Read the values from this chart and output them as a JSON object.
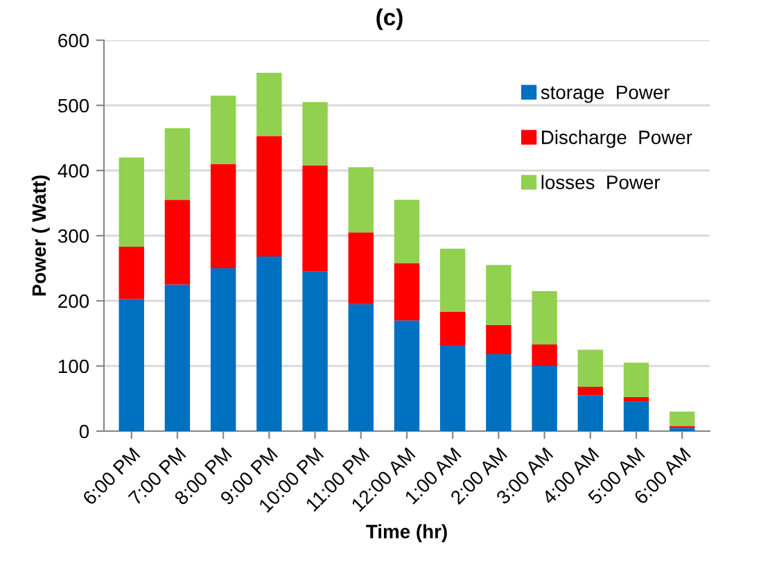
{
  "chart_data": {
    "type": "bar",
    "stacked": true,
    "title": "(c)",
    "xlabel": "Time (hr)",
    "ylabel": "Power ( Watt)",
    "categories": [
      "6:00 PM",
      "7:00 PM",
      "8:00 PM",
      "9:00 PM",
      "10:00 PM",
      "11:00 PM",
      "12:00 AM",
      "1:00 AM",
      "2:00 AM",
      "3:00 AM",
      "4:00 AM",
      "5:00 AM",
      "6:00 AM"
    ],
    "series": [
      {
        "name": "storage  Power",
        "color": "#0070c0",
        "values": [
          203,
          225,
          250,
          268,
          245,
          195,
          170,
          132,
          118,
          100,
          55,
          45,
          5
        ]
      },
      {
        "name": "Discharge  Power",
        "color": "#ff0000",
        "values": [
          80,
          130,
          160,
          185,
          163,
          110,
          88,
          51,
          45,
          33,
          13,
          7,
          3
        ]
      },
      {
        "name": "losses  Power",
        "color": "#92d050",
        "values": [
          137,
          110,
          105,
          97,
          97,
          100,
          97,
          97,
          92,
          82,
          57,
          53,
          22
        ]
      }
    ],
    "ylim": [
      0,
      600
    ],
    "yticks": [
      0,
      100,
      200,
      300,
      400,
      500,
      600
    ],
    "grid": "y",
    "legend": "top right"
  }
}
